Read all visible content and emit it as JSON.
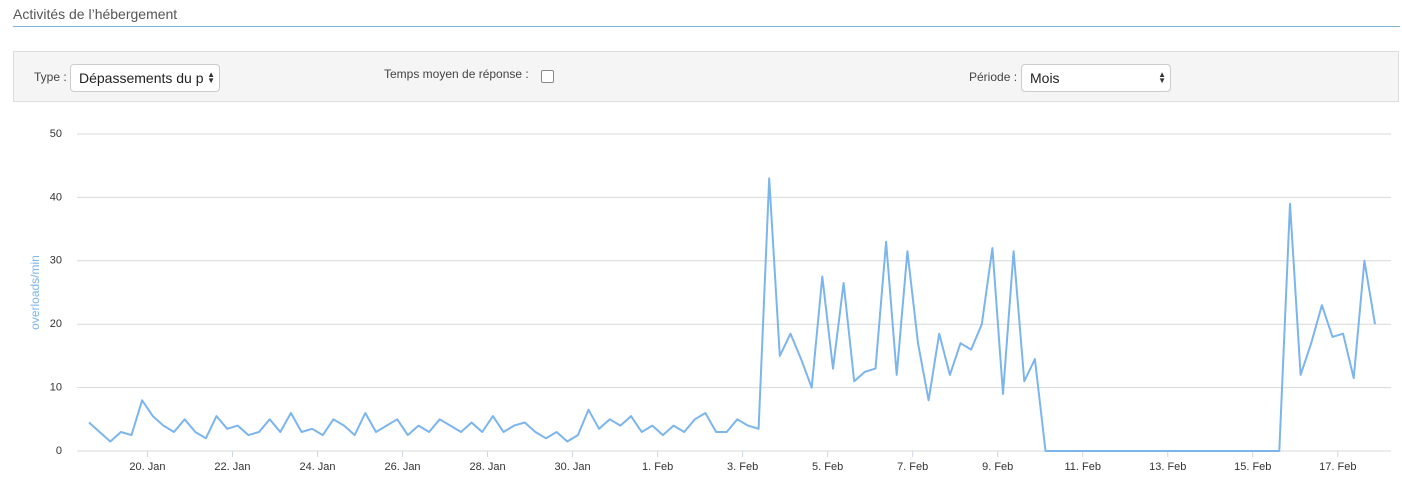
{
  "header": {
    "title": "Activités de l’hébergement"
  },
  "filters": {
    "type_label": "Type :",
    "type_value": "Dépassements du p",
    "avg_label": "Temps moyen de réponse :",
    "period_label": "Période :",
    "period_value": "Mois"
  },
  "chart_data": {
    "type": "line",
    "ylabel": "overloads/min",
    "color": "#7cb5ec",
    "grid": true,
    "values": [
      4.5,
      3,
      1.5,
      3,
      2.5,
      8,
      5.5,
      4,
      3,
      5,
      3,
      2,
      5.5,
      3.5,
      4,
      2.5,
      3,
      5,
      3,
      6,
      3,
      3.5,
      2.5,
      5,
      4,
      2.5,
      6,
      3,
      4,
      5,
      2.5,
      4,
      3,
      5,
      4,
      3,
      4.5,
      3,
      5.5,
      3,
      4,
      4.5,
      3,
      2,
      3,
      1.5,
      2.5,
      6.5,
      3.5,
      5,
      4,
      5.5,
      3,
      4,
      2.5,
      4,
      3,
      5,
      6,
      3,
      3,
      5,
      4,
      3.5,
      43,
      15,
      18.5,
      14.5,
      10,
      27.5,
      13,
      26.5,
      11,
      12.5,
      13,
      33,
      12,
      31.5,
      17,
      8,
      18.5,
      12,
      17,
      16,
      20,
      32,
      9,
      31.5,
      11,
      14.5,
      0,
      0,
      0,
      0,
      0,
      0,
      0,
      0,
      0,
      0,
      0,
      0,
      0,
      0,
      0,
      0,
      0,
      0,
      0,
      0,
      0,
      0,
      0,
      39,
      12,
      17,
      23,
      18,
      18.5,
      11.5,
      30,
      20
    ],
    "xlim": [
      0,
      121
    ],
    "xticks": [
      {
        "value": 5.5,
        "label": "20. Jan"
      },
      {
        "value": 13.5,
        "label": "22. Jan"
      },
      {
        "value": 21.5,
        "label": "24. Jan"
      },
      {
        "value": 29.5,
        "label": "26. Jan"
      },
      {
        "value": 37.5,
        "label": "28. Jan"
      },
      {
        "value": 45.5,
        "label": "30. Jan"
      },
      {
        "value": 53.5,
        "label": "1. Feb"
      },
      {
        "value": 61.5,
        "label": "3. Feb"
      },
      {
        "value": 69.5,
        "label": "5. Feb"
      },
      {
        "value": 77.5,
        "label": "7. Feb"
      },
      {
        "value": 85.5,
        "label": "9. Feb"
      },
      {
        "value": 93.5,
        "label": "11. Feb"
      },
      {
        "value": 101.5,
        "label": "13. Feb"
      },
      {
        "value": 109.5,
        "label": "15. Feb"
      },
      {
        "value": 117.5,
        "label": "17. Feb"
      }
    ],
    "ylim": [
      0,
      50
    ],
    "yticks": [
      0,
      10,
      20,
      30,
      40,
      50
    ]
  }
}
